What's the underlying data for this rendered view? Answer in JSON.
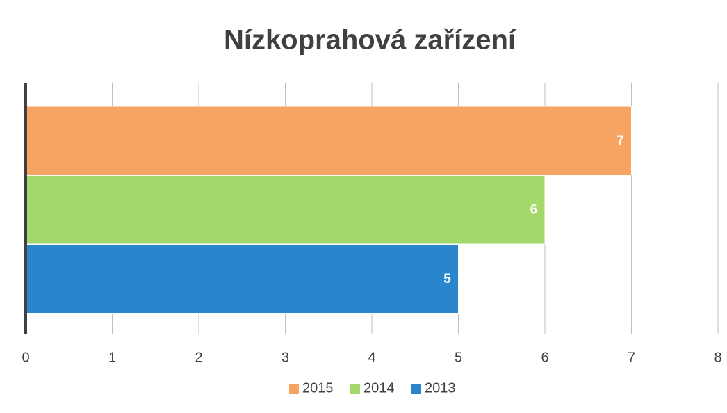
{
  "chart_data": {
    "type": "hbar",
    "title": "Nízkoprahová zařízení",
    "categories": [
      null
    ],
    "series": [
      {
        "name": "2015",
        "color": "#f7a463",
        "values": [
          7
        ]
      },
      {
        "name": "2014",
        "color": "#a3d86b",
        "values": [
          6
        ]
      },
      {
        "name": "2013",
        "color": "#2986cc",
        "values": [
          5
        ]
      }
    ],
    "xlim": [
      0,
      8
    ],
    "xticks": [
      0,
      1,
      2,
      3,
      4,
      5,
      6,
      7,
      8
    ],
    "grid": true,
    "legend": "bottom"
  }
}
